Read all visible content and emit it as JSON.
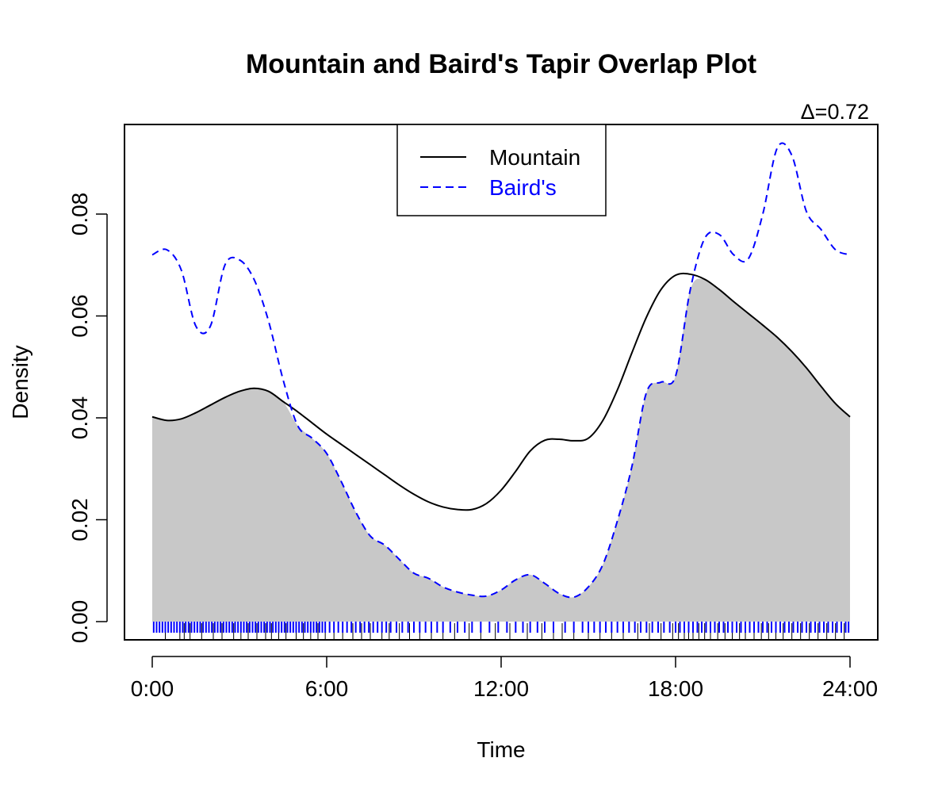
{
  "chart_data": {
    "type": "area",
    "title": "Mountain and Baird's Tapir Overlap Plot",
    "annotation": "Δ=0.72",
    "xlabel": "Time",
    "ylabel": "Density",
    "xlim": [
      0,
      24
    ],
    "ylim": [
      0,
      0.1
    ],
    "xticks": [
      0,
      6,
      12,
      18,
      24
    ],
    "xtick_labels": [
      "0:00",
      "6:00",
      "12:00",
      "18:00",
      "24:00"
    ],
    "yticks": [
      0,
      0.02,
      0.04,
      0.06,
      0.08
    ],
    "ytick_labels": [
      "0.00",
      "0.02",
      "0.04",
      "0.06",
      "0.08"
    ],
    "legend": {
      "position": "top-center",
      "entries": [
        "Mountain",
        "Baird's"
      ]
    },
    "overlap_fill": "#c8c8c8",
    "series": [
      {
        "name": "Mountain",
        "color": "#000000",
        "dash": "solid",
        "x": [
          0,
          0.5,
          1,
          1.5,
          2,
          2.5,
          3,
          3.5,
          4,
          4.5,
          5,
          5.5,
          6,
          6.5,
          7,
          7.5,
          8,
          8.5,
          9,
          9.5,
          10,
          10.5,
          11,
          11.5,
          12,
          12.5,
          13,
          13.5,
          14,
          14.5,
          15,
          15.5,
          16,
          16.5,
          17,
          17.5,
          18,
          18.5,
          19,
          19.5,
          20,
          20.5,
          21,
          21.5,
          22,
          22.5,
          23,
          23.5,
          24
        ],
        "values": [
          0.0402,
          0.0395,
          0.0398,
          0.041,
          0.0425,
          0.044,
          0.0452,
          0.0458,
          0.0452,
          0.0432,
          0.0412,
          0.039,
          0.0368,
          0.0348,
          0.0328,
          0.0308,
          0.0288,
          0.0268,
          0.025,
          0.0235,
          0.0225,
          0.022,
          0.022,
          0.0232,
          0.0258,
          0.0295,
          0.0335,
          0.0356,
          0.0358,
          0.0355,
          0.036,
          0.0395,
          0.0455,
          0.0528,
          0.0598,
          0.0652,
          0.068,
          0.0682,
          0.0672,
          0.0652,
          0.0628,
          0.0605,
          0.0582,
          0.0558,
          0.053,
          0.0498,
          0.0462,
          0.0428,
          0.0402
        ]
      },
      {
        "name": "Baird's",
        "color": "#0000ff",
        "dash": "dashed",
        "x": [
          0,
          0.5,
          1,
          1.5,
          2,
          2.5,
          3,
          3.5,
          4,
          4.5,
          5,
          5.5,
          6,
          6.5,
          7,
          7.5,
          8,
          8.5,
          9,
          9.5,
          10,
          10.5,
          11,
          11.5,
          12,
          12.5,
          13,
          13.5,
          14,
          14.5,
          15,
          15.5,
          16,
          16.5,
          17,
          17.5,
          18,
          18.5,
          19,
          19.5,
          20,
          20.5,
          21,
          21.5,
          22,
          22.5,
          23,
          23.5,
          24
        ],
        "values": [
          0.072,
          0.073,
          0.069,
          0.058,
          0.058,
          0.07,
          0.071,
          0.0672,
          0.059,
          0.0475,
          0.0385,
          0.036,
          0.033,
          0.0275,
          0.0215,
          0.0168,
          0.015,
          0.0122,
          0.0095,
          0.0085,
          0.0068,
          0.0058,
          0.0052,
          0.005,
          0.0062,
          0.0082,
          0.0092,
          0.0075,
          0.0055,
          0.0048,
          0.0068,
          0.0112,
          0.0198,
          0.0305,
          0.045,
          0.047,
          0.0482,
          0.065,
          0.0752,
          0.076,
          0.072,
          0.0712,
          0.08,
          0.093,
          0.0915,
          0.0805,
          0.077,
          0.073,
          0.072
        ]
      }
    ],
    "rug": [
      {
        "name": "Mountain",
        "color": "#000000",
        "x": [
          0.45,
          0.95,
          1.1,
          1.3,
          1.7,
          2.1,
          2.4,
          2.8,
          3.05,
          3.3,
          3.6,
          3.9,
          4.1,
          4.35,
          4.6,
          4.95,
          5.2,
          5.45,
          5.7,
          5.95,
          6.25,
          6.55,
          6.9,
          7.2,
          7.5,
          7.9,
          8.15,
          8.5,
          8.85,
          9.2,
          9.6,
          10.0,
          10.4,
          10.9,
          11.3,
          11.8,
          12.3,
          12.9,
          13.4,
          13.8,
          14.1,
          14.5,
          15.0,
          15.4,
          15.8,
          16.2,
          16.7,
          17.1,
          17.5,
          17.9,
          18.1,
          18.3,
          18.45,
          18.6,
          18.8,
          19.0,
          19.2,
          19.45,
          19.7,
          19.95,
          20.2,
          20.4,
          20.7,
          20.95,
          21.2,
          21.45,
          21.7,
          22.0,
          22.3,
          22.6,
          22.9,
          23.2,
          23.5,
          23.8
        ]
      },
      {
        "name": "Baird's",
        "color": "#0000ff",
        "x": [
          0.05,
          0.15,
          0.25,
          0.35,
          0.45,
          0.55,
          0.65,
          0.75,
          0.85,
          0.95,
          1.05,
          1.15,
          1.25,
          1.35,
          1.45,
          1.55,
          1.65,
          1.75,
          1.85,
          1.95,
          2.05,
          2.15,
          2.25,
          2.35,
          2.45,
          2.55,
          2.65,
          2.75,
          2.85,
          2.95,
          3.05,
          3.15,
          3.25,
          3.35,
          3.45,
          3.55,
          3.65,
          3.75,
          3.85,
          3.95,
          4.05,
          4.15,
          4.25,
          4.35,
          4.45,
          4.55,
          4.65,
          4.75,
          4.85,
          4.95,
          5.05,
          5.15,
          5.25,
          5.35,
          5.45,
          5.55,
          5.65,
          5.75,
          5.85,
          5.95,
          6.1,
          6.25,
          6.4,
          6.55,
          6.7,
          6.85,
          7.0,
          7.15,
          7.3,
          7.45,
          7.6,
          7.75,
          7.9,
          8.05,
          8.2,
          8.4,
          8.6,
          8.8,
          9.0,
          9.2,
          9.4,
          9.6,
          9.8,
          10.0,
          10.25,
          10.5,
          10.75,
          11.0,
          11.3,
          11.6,
          11.9,
          12.2,
          12.5,
          12.75,
          13.0,
          13.25,
          13.5,
          13.8,
          14.2,
          14.5,
          14.8,
          15.0,
          15.2,
          15.4,
          15.6,
          15.8,
          16.0,
          16.2,
          16.4,
          16.6,
          16.8,
          17.0,
          17.2,
          17.4,
          17.6,
          17.8,
          18.0,
          18.15,
          18.3,
          18.45,
          18.6,
          18.75,
          18.9,
          19.05,
          19.2,
          19.35,
          19.5,
          19.65,
          19.8,
          19.95,
          20.1,
          20.25,
          20.4,
          20.55,
          20.7,
          20.85,
          21.0,
          21.15,
          21.3,
          21.45,
          21.6,
          21.75,
          21.9,
          22.05,
          22.2,
          22.35,
          22.5,
          22.65,
          22.8,
          22.95,
          23.1,
          23.25,
          23.4,
          23.55,
          23.7,
          23.85,
          23.95
        ]
      }
    ]
  }
}
